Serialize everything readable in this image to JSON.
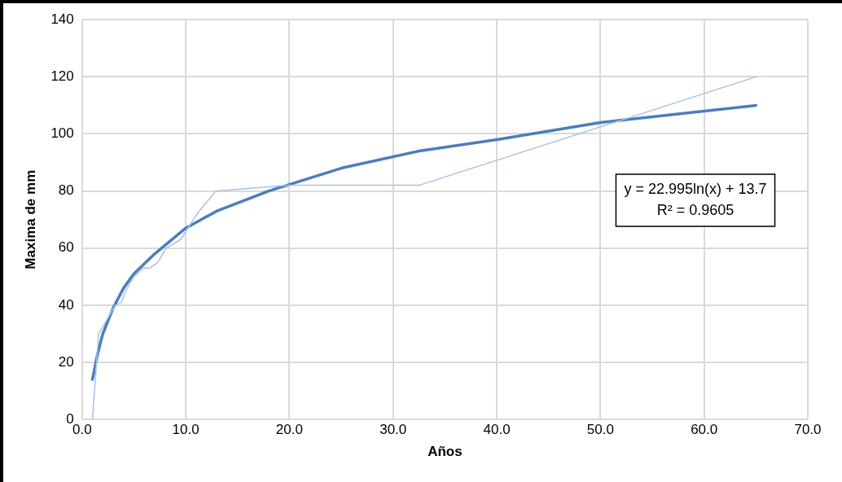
{
  "chart_data": {
    "type": "line",
    "xlabel": "Años",
    "ylabel": "Maxima de mm",
    "xlim": [
      0,
      70
    ],
    "xticks": [
      {
        "value": 0,
        "label": "0.0"
      },
      {
        "value": 10,
        "label": "10.0"
      },
      {
        "value": 20,
        "label": "20.0"
      },
      {
        "value": 30,
        "label": "30.0"
      },
      {
        "value": 40,
        "label": "40.0"
      },
      {
        "value": 50,
        "label": "50.0"
      },
      {
        "value": 60,
        "label": "60.0"
      },
      {
        "value": 70,
        "label": "70.0"
      }
    ],
    "ylim": [
      0,
      140
    ],
    "yticks": [
      0,
      20,
      40,
      60,
      80,
      100,
      120,
      140
    ],
    "grid": true,
    "marker": "none",
    "line_style": "solid",
    "series": [
      {
        "color": "#a7c2e3",
        "x": [
          1,
          1.6,
          2.1,
          3.2,
          3.8,
          4.2,
          5,
          5.9,
          6.5,
          7.3,
          8.1,
          9.5,
          11.1,
          12.9,
          19.9,
          32.5,
          65
        ],
        "values": [
          0,
          30,
          33,
          40,
          41,
          45,
          50,
          53,
          53,
          55,
          60,
          63,
          72,
          80,
          82,
          82,
          120
        ]
      },
      {
        "color": "#4a7ebb",
        "x": [
          1,
          1.5,
          2,
          3,
          4,
          5,
          7,
          10,
          13,
          18,
          25,
          32.5,
          40,
          50,
          65
        ],
        "values": [
          14,
          23,
          30,
          39,
          46,
          51,
          58,
          67,
          73,
          80,
          88,
          94,
          98,
          104,
          110
        ]
      }
    ],
    "annotations": [
      "y = 22.995ln(x) + 13.7",
      "R² = 0.9605"
    ]
  }
}
